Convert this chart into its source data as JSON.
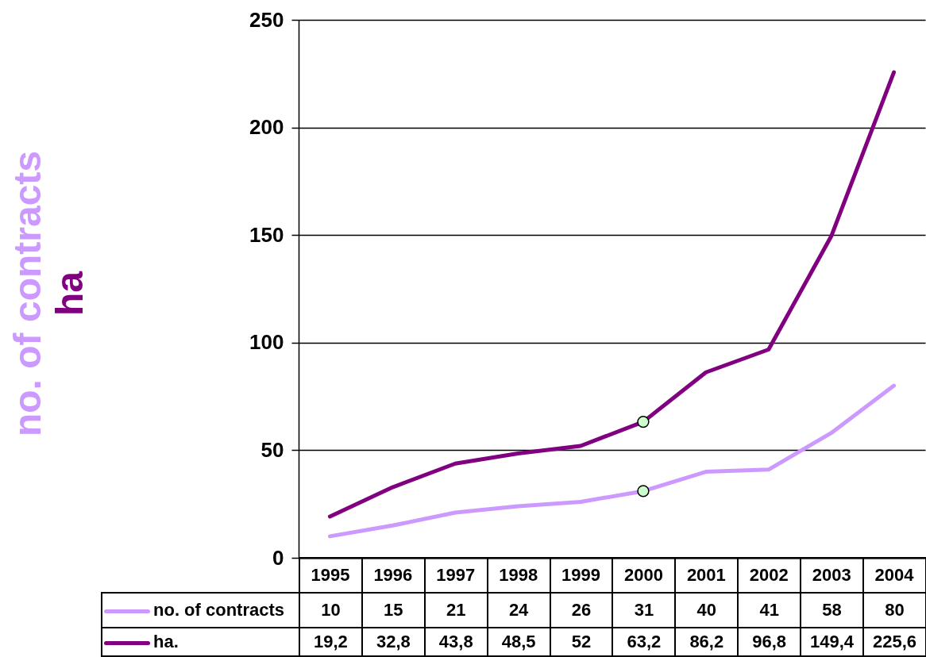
{
  "chart_data": {
    "type": "line",
    "ylabel": "no. of contracts\nha",
    "categories": [
      "1995",
      "1996",
      "1997",
      "1998",
      "1999",
      "2000",
      "2001",
      "2002",
      "2003",
      "2004"
    ],
    "series": [
      {
        "name": "no. of contracts",
        "color": "#cc99ff",
        "values": [
          10,
          15,
          21,
          24,
          26,
          31,
          40,
          41,
          58,
          80
        ],
        "value_labels": [
          "10",
          "15",
          "21",
          "24",
          "26",
          "31",
          "40",
          "41",
          "58",
          "80"
        ]
      },
      {
        "name": "ha.",
        "color": "#800080",
        "values": [
          19.2,
          32.8,
          43.8,
          48.5,
          52,
          63.2,
          86.2,
          96.8,
          149.4,
          225.6
        ],
        "value_labels": [
          "19,2",
          "32,8",
          "43,8",
          "48,5",
          "52",
          "63,2",
          "86,2",
          "96,8",
          "149,4",
          "225,6"
        ]
      },
      {
        "type": "scatter",
        "values": [
          null,
          null,
          null,
          null,
          null,
          63.2,
          null,
          null,
          null,
          null
        ],
        "color": "#ccffcc",
        "marker": "circle"
      },
      {
        "type": "scatter",
        "values": [
          null,
          null,
          null,
          null,
          null,
          31,
          null,
          null,
          null,
          null
        ],
        "color": "#ccffcc",
        "marker": "circle"
      }
    ],
    "ylim": [
      0,
      250
    ],
    "yticks": [
      0,
      50,
      100,
      150,
      200,
      250
    ],
    "grid": "y",
    "legend": "bottom"
  }
}
